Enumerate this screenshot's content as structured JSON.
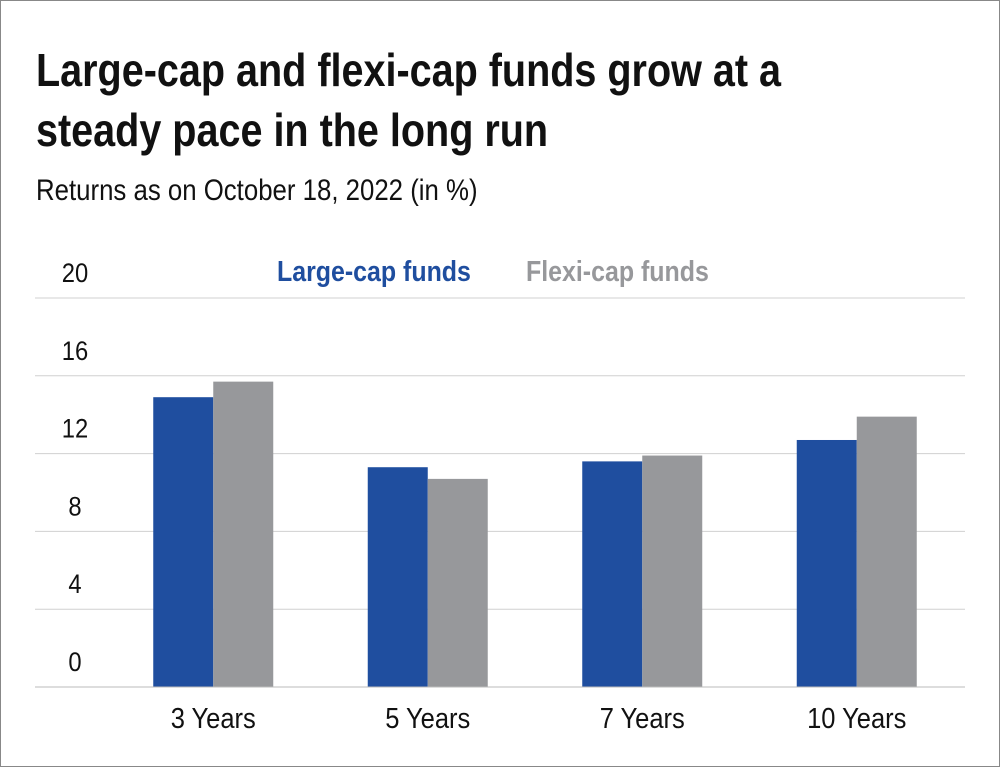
{
  "chart_data": {
    "type": "bar",
    "title_lines": [
      "Large-cap and flexi-cap funds grow at a",
      "steady pace in the long run"
    ],
    "subtitle": "Returns as on October 18, 2022 (in %)",
    "categories": [
      "3 Years",
      "5 Years",
      "7 Years",
      "10 Years"
    ],
    "series": [
      {
        "name": "Large-cap funds",
        "color": "#1f4e9f",
        "values": [
          14.9,
          11.3,
          11.6,
          12.7
        ]
      },
      {
        "name": "Flexi-cap funds",
        "color": "#97989b",
        "values": [
          15.7,
          10.7,
          11.9,
          13.9
        ]
      }
    ],
    "ylim": [
      0,
      20
    ],
    "yticks": [
      0,
      4,
      8,
      12,
      16,
      20
    ],
    "grid": true
  }
}
